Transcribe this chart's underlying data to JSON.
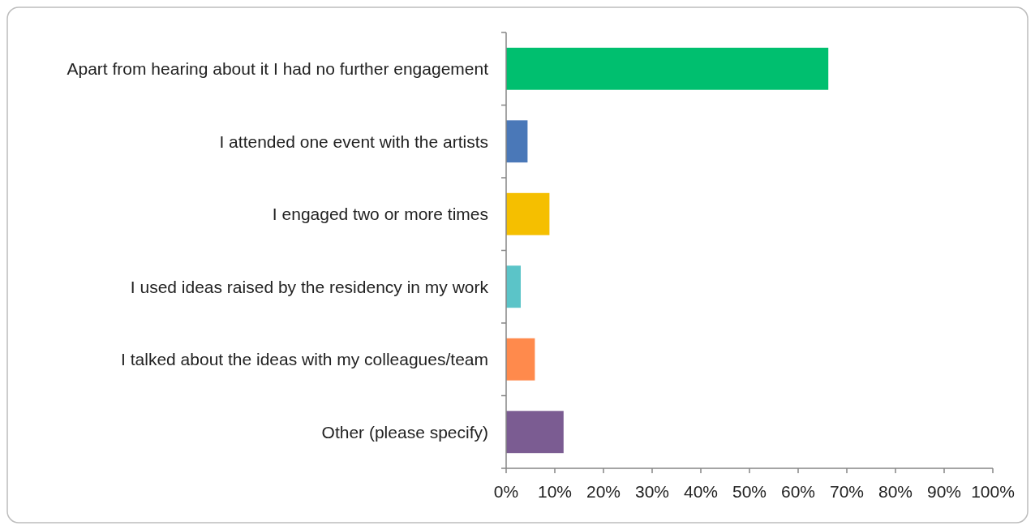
{
  "chart_data": {
    "type": "bar",
    "orientation": "horizontal",
    "categories": [
      "Apart from hearing about it I had no further engagement",
      "I attended one event with the artists",
      "I engaged two or more times",
      "I used ideas raised by the residency in my work",
      "I talked about the ideas with my colleagues/team",
      "Other (please specify)"
    ],
    "values": [
      66.2,
      4.4,
      8.9,
      3.0,
      5.9,
      11.8
    ],
    "colors": [
      "#00bf6f",
      "#4a78b8",
      "#f5bf00",
      "#5bc4c8",
      "#ff8a4c",
      "#7b5c92"
    ],
    "xlim": [
      0,
      100
    ],
    "xticks": [
      {
        "value": 0,
        "label": "0%"
      },
      {
        "value": 10,
        "label": "10%"
      },
      {
        "value": 20,
        "label": "20%"
      },
      {
        "value": 30,
        "label": "30%"
      },
      {
        "value": 40,
        "label": "40%"
      },
      {
        "value": 50,
        "label": "50%"
      },
      {
        "value": 60,
        "label": "60%"
      },
      {
        "value": 70,
        "label": "70%"
      },
      {
        "value": 80,
        "label": "80%"
      },
      {
        "value": 90,
        "label": "90%"
      },
      {
        "value": 100,
        "label": "100%"
      }
    ],
    "grid": false
  }
}
